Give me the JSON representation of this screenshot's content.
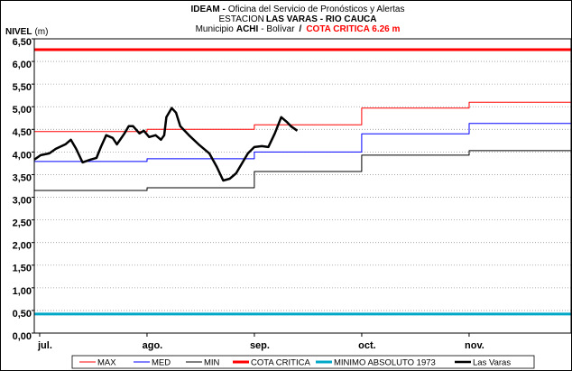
{
  "chart_data": {
    "type": "line",
    "title": {
      "line1": [
        "IDEAM -",
        "Oficina del Servicio de Pronósticos y Alertas"
      ],
      "line2": [
        "ESTACION",
        "LAS VARAS - RIO CAUCA"
      ],
      "line3": [
        "Municipio",
        "ACHI",
        "- Bolívar",
        "/",
        "COTA CRITICA 6.26 m"
      ]
    },
    "y_label": [
      "NIVEL",
      "(m)"
    ],
    "xlim": [
      -0.05,
      4.95
    ],
    "xticks": [
      {
        "value": 0,
        "label": "jul."
      },
      {
        "value": 1,
        "label": "ago."
      },
      {
        "value": 2,
        "label": "sep."
      },
      {
        "value": 3,
        "label": "oct."
      },
      {
        "value": 4,
        "label": "nov."
      }
    ],
    "ylim": [
      0,
      6.5
    ],
    "yticks": [
      {
        "value": 0,
        "label": "0,00"
      },
      {
        "value": 0.5,
        "label": "0,50"
      },
      {
        "value": 1,
        "label": "1,00"
      },
      {
        "value": 1.5,
        "label": "1,50"
      },
      {
        "value": 2,
        "label": "2,00"
      },
      {
        "value": 2.5,
        "label": "2,50"
      },
      {
        "value": 3,
        "label": "3,00"
      },
      {
        "value": 3.5,
        "label": "3,50"
      },
      {
        "value": 4,
        "label": "4,00"
      },
      {
        "value": 4.5,
        "label": "4,50"
      },
      {
        "value": 5,
        "label": "5,00"
      },
      {
        "value": 5.5,
        "label": "5,50"
      },
      {
        "value": 6,
        "label": "6,00"
      },
      {
        "value": 6.5,
        "label": "6,50"
      }
    ],
    "grid": true,
    "legend": "bottom",
    "series": [
      {
        "name": "MAX",
        "color": "#ff0000",
        "line_width": 1,
        "x": [
          -0.05,
          1,
          1,
          2,
          2,
          3,
          3,
          4,
          4,
          4.95,
          4.95
        ],
        "values": [
          4.45,
          4.45,
          4.5,
          4.5,
          4.6,
          4.6,
          4.97,
          4.97,
          5.1,
          5.1,
          4.87
        ]
      },
      {
        "name": "MED",
        "color": "#0000ff",
        "line_width": 1,
        "x": [
          -0.05,
          1,
          1,
          2,
          2,
          3,
          3,
          4,
          4,
          4.95,
          4.95
        ],
        "values": [
          3.79,
          3.79,
          3.85,
          3.85,
          4.0,
          4.0,
          4.4,
          4.4,
          4.63,
          4.63,
          4.4
        ]
      },
      {
        "name": "MIN",
        "color": "#000000",
        "line_width": 1,
        "x": [
          -0.05,
          1,
          1,
          2,
          2,
          3,
          3,
          4,
          4,
          4.95,
          4.95
        ],
        "values": [
          3.15,
          3.15,
          3.21,
          3.21,
          3.57,
          3.57,
          3.93,
          3.93,
          4.03,
          4.03,
          3.4
        ]
      },
      {
        "name": "COTA CRITICA",
        "color": "#ff0000",
        "line_width": 3,
        "x": [
          -0.05,
          4.95
        ],
        "values": [
          6.26,
          6.26
        ]
      },
      {
        "name": "MINIMO ABSOLUTO 1973",
        "color": "#00a8c8",
        "line_width": 3,
        "x": [
          -0.05,
          4.95
        ],
        "values": [
          0.42,
          0.42
        ]
      },
      {
        "name": "Las Varas",
        "color": "#000000",
        "line_width": 2.5,
        "x": [
          -0.05,
          0.01,
          0.09,
          0.15,
          0.24,
          0.29,
          0.34,
          0.4,
          0.47,
          0.53,
          0.57,
          0.62,
          0.68,
          0.72,
          0.79,
          0.83,
          0.87,
          0.93,
          0.97,
          1.02,
          1.08,
          1.13,
          1.16,
          1.18,
          1.23,
          1.27,
          1.31,
          1.39,
          1.48,
          1.58,
          1.65,
          1.71,
          1.77,
          1.83,
          1.88,
          1.94,
          2.0,
          2.07,
          2.13,
          2.19,
          2.25,
          2.3,
          2.34,
          2.4
        ],
        "values": [
          3.83,
          3.93,
          3.97,
          4.07,
          4.17,
          4.27,
          4.07,
          3.77,
          3.83,
          3.87,
          4.11,
          4.37,
          4.31,
          4.17,
          4.41,
          4.57,
          4.57,
          4.41,
          4.47,
          4.33,
          4.37,
          4.27,
          4.37,
          4.77,
          4.97,
          4.87,
          4.57,
          4.37,
          4.17,
          3.97,
          3.67,
          3.37,
          3.41,
          3.53,
          3.73,
          3.97,
          4.11,
          4.13,
          4.11,
          4.41,
          4.77,
          4.67,
          4.57,
          4.47
        ]
      }
    ]
  }
}
